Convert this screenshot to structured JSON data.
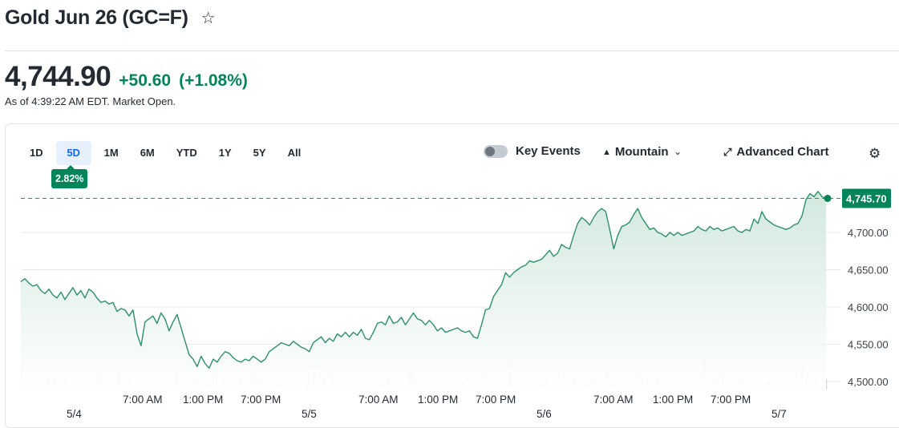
{
  "header": {
    "title": "Gold Jun 26 (GC=F)",
    "star_glyph": "☆"
  },
  "quote": {
    "price": "4,744.90",
    "change": "+50.60",
    "change_pct": "(+1.08%)",
    "as_of": "As of 4:39:22 AM EDT. Market Open."
  },
  "colors": {
    "positive": "#00845a",
    "accent": "#0f69ff",
    "line": "#2f8f6b",
    "fill_top": "#cfe7dc"
  },
  "toolbar": {
    "ranges": [
      "1D",
      "5D",
      "1M",
      "6M",
      "YTD",
      "1Y",
      "5Y",
      "All"
    ],
    "active_range": "5D",
    "range_change_badge": "2.82%",
    "key_events_label": "Key Events",
    "key_events_on": false,
    "chart_type_label": "Mountain",
    "advanced_label": "Advanced Chart",
    "icons": {
      "chart_type": "mountain-icon",
      "advanced": "expand-icon",
      "settings": "gear-icon"
    }
  },
  "chart_data": {
    "type": "area",
    "title": "",
    "xlabel": "",
    "ylabel": "",
    "ylim": [
      4490,
      4760
    ],
    "yticks": [
      4500,
      4550,
      4600,
      4650,
      4700
    ],
    "ytick_labels": [
      "4,500.00",
      "4,550.00",
      "4,600.00",
      "4,650.00",
      "4,700.00"
    ],
    "last_value": 4745.7,
    "last_value_label": "4,745.70",
    "reference_line": 4745.7,
    "x_time_labels": [
      "7:00 AM",
      "1:00 PM",
      "7:00 PM",
      "7:00 AM",
      "1:00 PM",
      "7:00 PM",
      "7:00 AM",
      "1:00 PM",
      "7:00 PM"
    ],
    "x_date_labels": [
      "5/4",
      "5/5",
      "5/6",
      "5/7"
    ],
    "series": [
      {
        "values": [
          4634,
          4638,
          4632,
          4628,
          4630,
          4622,
          4618,
          4624,
          4616,
          4612,
          4620,
          4610,
          4618,
          4626,
          4616,
          4622,
          4612,
          4624,
          4620,
          4612,
          4606,
          4608,
          4604,
          4606,
          4594,
          4598,
          4596,
          4588,
          4596,
          4564,
          4548,
          4580,
          4584,
          4588,
          4578,
          4592,
          4584,
          4568,
          4580,
          4590,
          4572,
          4554,
          4536,
          4530,
          4520,
          4534,
          4524,
          4518,
          4530,
          4526,
          4534,
          4540,
          4538,
          4532,
          4528,
          4526,
          4530,
          4528,
          4534,
          4530,
          4526,
          4530,
          4540,
          4544,
          4548,
          4552,
          4550,
          4548,
          4554,
          4550,
          4546,
          4544,
          4540,
          4552,
          4556,
          4560,
          4552,
          4558,
          4554,
          4564,
          4560,
          4566,
          4560,
          4566,
          4562,
          4570,
          4558,
          4556,
          4566,
          4578,
          4580,
          4576,
          4588,
          4578,
          4580,
          4586,
          4576,
          4584,
          4592,
          4584,
          4582,
          4576,
          4582,
          4576,
          4568,
          4572,
          4566,
          4568,
          4570,
          4572,
          4568,
          4566,
          4568,
          4560,
          4558,
          4576,
          4596,
          4598,
          4614,
          4622,
          4630,
          4646,
          4640,
          4646,
          4650,
          4654,
          4656,
          4662,
          4660,
          4662,
          4664,
          4670,
          4676,
          4668,
          4672,
          4684,
          4680,
          4678,
          4696,
          4712,
          4720,
          4716,
          4710,
          4720,
          4728,
          4732,
          4728,
          4704,
          4678,
          4696,
          4708,
          4710,
          4714,
          4724,
          4732,
          4720,
          4712,
          4704,
          4706,
          4700,
          4698,
          4694,
          4700,
          4696,
          4700,
          4696,
          4698,
          4700,
          4702,
          4708,
          4704,
          4702,
          4708,
          4704,
          4706,
          4702,
          4704,
          4706,
          4708,
          4702,
          4700,
          4704,
          4702,
          4718,
          4712,
          4728,
          4718,
          4714,
          4710,
          4708,
          4706,
          4704,
          4706,
          4710,
          4712,
          4722,
          4744,
          4752,
          4748,
          4755,
          4748,
          4745.7
        ]
      }
    ]
  }
}
